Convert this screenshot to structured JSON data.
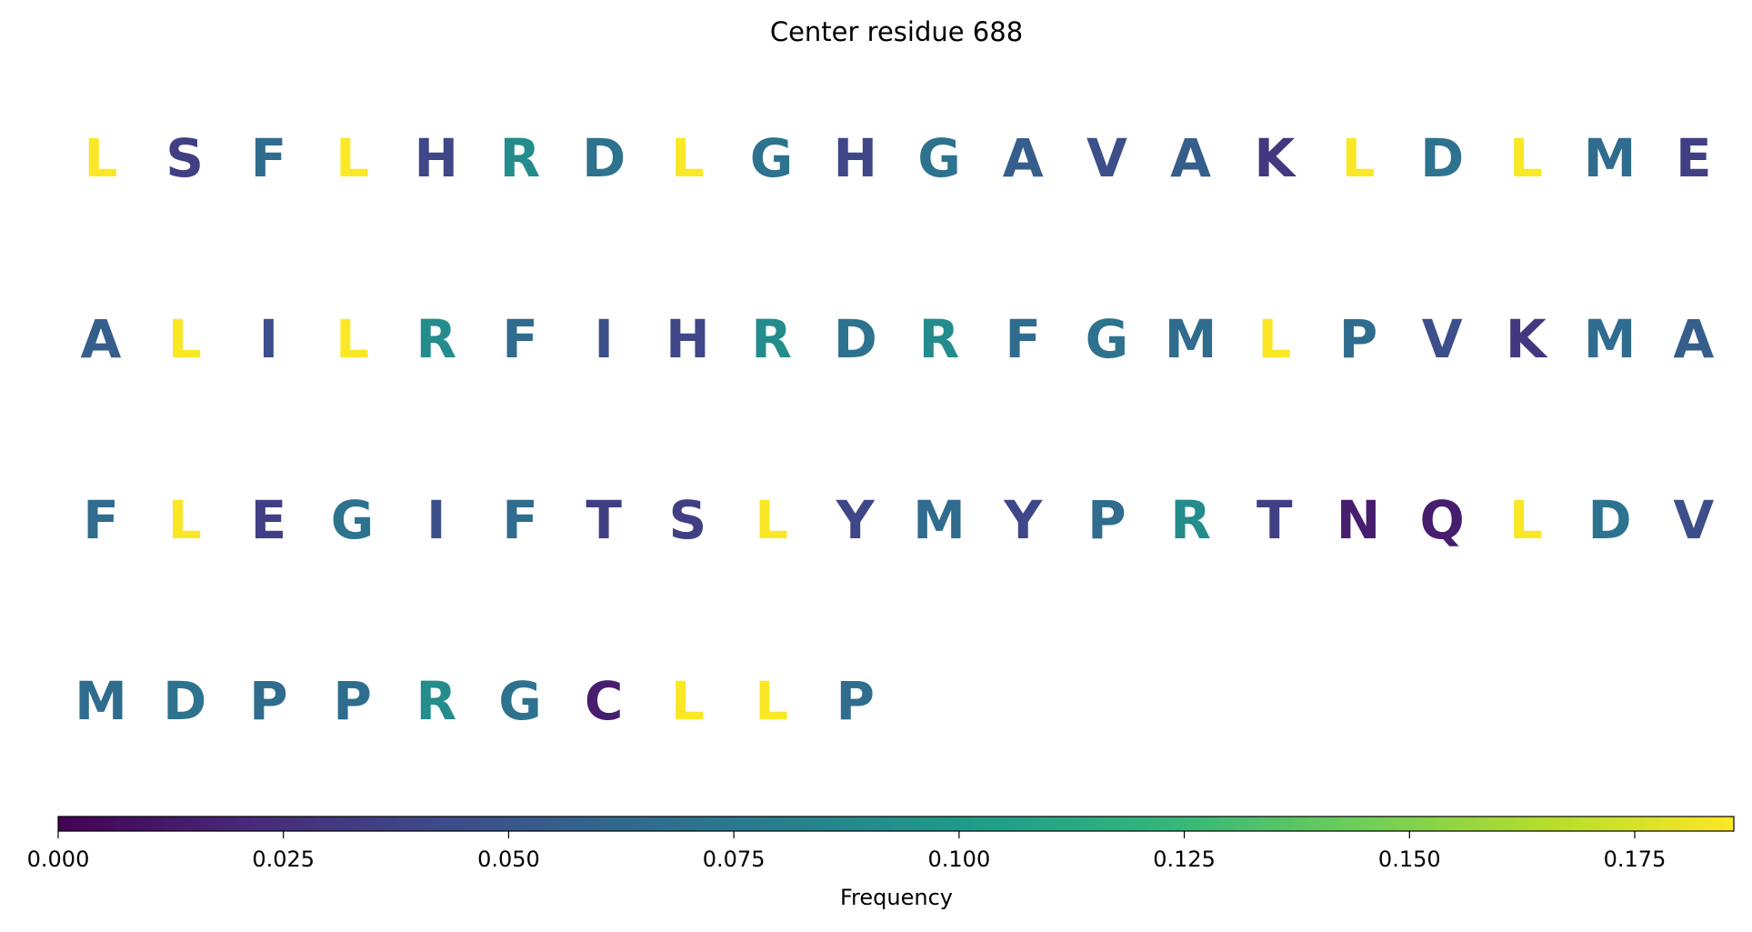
{
  "chart_data": {
    "type": "sequence",
    "title": "Center residue 688",
    "categories": [
      "L",
      "S",
      "F",
      "L",
      "H",
      "R",
      "D",
      "L",
      "G",
      "H",
      "G",
      "A",
      "V",
      "A",
      "K",
      "L",
      "D",
      "L",
      "M",
      "E",
      "A",
      "L",
      "I",
      "L",
      "R",
      "F",
      "I",
      "H",
      "R",
      "D",
      "R",
      "F",
      "G",
      "M",
      "L",
      "P",
      "V",
      "K",
      "M",
      "A",
      "F",
      "L",
      "E",
      "G",
      "I",
      "F",
      "T",
      "S",
      "L",
      "Y",
      "M",
      "Y",
      "P",
      "R",
      "T",
      "N",
      "Q",
      "L",
      "D",
      "V",
      "M",
      "D",
      "P",
      "P",
      "R",
      "G",
      "C",
      "L",
      "L",
      "P"
    ],
    "values": [
      0.185,
      0.035,
      0.065,
      0.185,
      0.04,
      0.09,
      0.07,
      0.185,
      0.07,
      0.04,
      0.07,
      0.055,
      0.045,
      0.055,
      0.03,
      0.185,
      0.07,
      0.185,
      0.065,
      0.035,
      0.055,
      0.185,
      0.045,
      0.185,
      0.09,
      0.065,
      0.045,
      0.04,
      0.09,
      0.07,
      0.09,
      0.065,
      0.07,
      0.065,
      0.185,
      0.065,
      0.045,
      0.03,
      0.065,
      0.055,
      0.065,
      0.185,
      0.035,
      0.07,
      0.045,
      0.065,
      0.035,
      0.035,
      0.185,
      0.04,
      0.065,
      0.04,
      0.065,
      0.09,
      0.035,
      0.015,
      0.015,
      0.185,
      0.07,
      0.045,
      0.065,
      0.07,
      0.065,
      0.065,
      0.09,
      0.07,
      0.015,
      0.185,
      0.185,
      0.065
    ],
    "colormap": "viridis",
    "colorbar_label": "Frequency",
    "xlim": [
      0,
      0.186
    ],
    "xticks": [
      {
        "value": 0,
        "label": "0.000"
      },
      {
        "value": 0.025,
        "label": "0.025"
      },
      {
        "value": 0.05,
        "label": "0.050"
      },
      {
        "value": 0.075,
        "label": "0.075"
      },
      {
        "value": 0.1,
        "label": "0.100"
      },
      {
        "value": 0.125,
        "label": "0.125"
      },
      {
        "value": 0.15,
        "label": "0.150"
      },
      {
        "value": 0.175,
        "label": "0.175"
      }
    ]
  }
}
